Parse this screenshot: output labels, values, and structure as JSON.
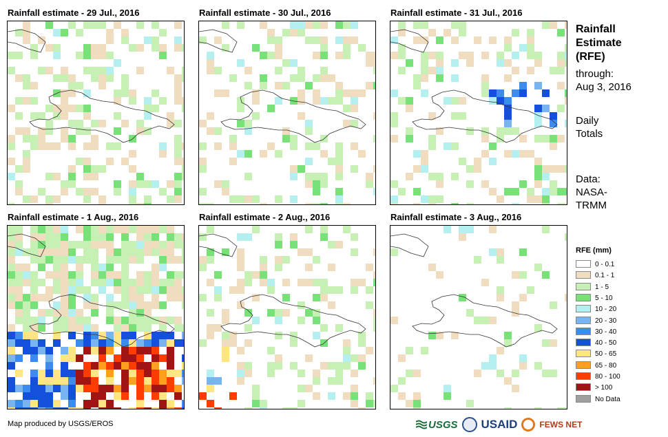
{
  "panels": [
    {
      "title": "Rainfall estimate - 29 Jul., 2016"
    },
    {
      "title": "Rainfall estimate - 30 Jul., 2016"
    },
    {
      "title": "Rainfall estimate - 31 Jul., 2016"
    },
    {
      "title": "Rainfall estimate - 1 Aug., 2016"
    },
    {
      "title": "Rainfall estimate - 2 Aug., 2016"
    },
    {
      "title": "Rainfall estimate - 3 Aug., 2016"
    }
  ],
  "sidebar": {
    "title_lines": [
      "Rainfall",
      "Estimate",
      "(RFE)"
    ],
    "through_label": "through:",
    "through_date": "Aug 3, 2016",
    "totals_lines": [
      "Daily",
      "Totals"
    ],
    "data_lines": [
      "Data:",
      "NASA-",
      "TRMM"
    ]
  },
  "legend": {
    "title": "RFE (mm)",
    "items": [
      {
        "label": "0 - 0.1",
        "color": "#ffffff"
      },
      {
        "label": "0.1 - 1",
        "color": "#f0dcbe"
      },
      {
        "label": "1 - 5",
        "color": "#c6f0b4"
      },
      {
        "label": "5 - 10",
        "color": "#78e178"
      },
      {
        "label": "10 - 20",
        "color": "#b4f0f0"
      },
      {
        "label": "20 - 30",
        "color": "#78b4f0"
      },
      {
        "label": "30 - 40",
        "color": "#3c8cf0"
      },
      {
        "label": "40 - 50",
        "color": "#1450dc"
      },
      {
        "label": "50 - 65",
        "color": "#ffe682"
      },
      {
        "label": "65 - 80",
        "color": "#ffa01e"
      },
      {
        "label": "80 - 100",
        "color": "#ff3c00"
      },
      {
        "label": "> 100",
        "color": "#a01414"
      },
      {
        "label": "No Data",
        "color": "#a0a0a0"
      }
    ]
  },
  "footer": {
    "credit": "Map produced by USGS/EROS",
    "logo_usgs": "USGS",
    "logo_usaid": "USAID",
    "logo_fews": "FEWS NET"
  }
}
